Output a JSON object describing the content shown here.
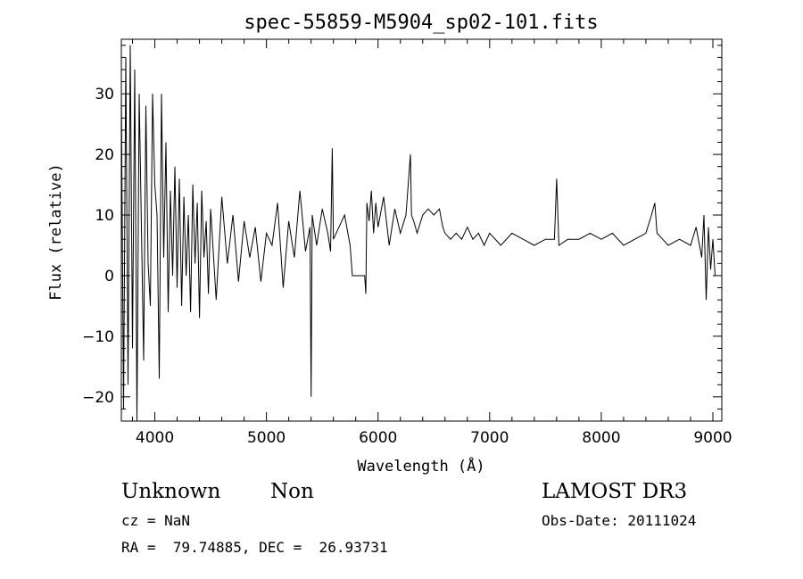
{
  "chart_data": {
    "type": "line",
    "title": "spec-55859-M5904_sp02-101.fits",
    "xlabel": "Wavelength (Å)",
    "ylabel": "Flux (relative)",
    "xlim": [
      3700,
      9080
    ],
    "ylim": [
      -24,
      39
    ],
    "xticks": [
      "4000",
      "5000",
      "6000",
      "7000",
      "8000",
      "9000"
    ],
    "yticks": [
      "-20",
      "-10",
      "0",
      "10",
      "20",
      "30"
    ],
    "series": [
      {
        "name": "flux",
        "x": [
          3700,
          3720,
          3740,
          3760,
          3780,
          3800,
          3820,
          3840,
          3860,
          3880,
          3900,
          3920,
          3940,
          3960,
          3980,
          4000,
          4020,
          4040,
          4060,
          4080,
          4100,
          4120,
          4140,
          4160,
          4180,
          4200,
          4220,
          4240,
          4260,
          4280,
          4300,
          4320,
          4340,
          4360,
          4380,
          4400,
          4420,
          4440,
          4460,
          4480,
          4500,
          4550,
          4600,
          4650,
          4700,
          4750,
          4800,
          4850,
          4900,
          4950,
          5000,
          5050,
          5100,
          5150,
          5200,
          5250,
          5300,
          5350,
          5390,
          5400,
          5410,
          5450,
          5500,
          5550,
          5575,
          5590,
          5600,
          5650,
          5700,
          5750,
          5770,
          5780,
          5800,
          5850,
          5880,
          5890,
          5900,
          5920,
          5940,
          5960,
          5980,
          6000,
          6050,
          6100,
          6150,
          6200,
          6250,
          6290,
          6300,
          6320,
          6350,
          6400,
          6450,
          6500,
          6550,
          6580,
          6600,
          6650,
          6700,
          6750,
          6800,
          6850,
          6900,
          6950,
          7000,
          7100,
          7200,
          7300,
          7400,
          7500,
          7580,
          7600,
          7620,
          7700,
          7800,
          7900,
          8000,
          8100,
          8200,
          8300,
          8400,
          8450,
          8480,
          8500,
          8550,
          8600,
          8700,
          8800,
          8850,
          8900,
          8920,
          8940,
          8960,
          8980,
          9000,
          9020
        ],
        "y": [
          30,
          -22,
          36,
          -18,
          38,
          -12,
          34,
          -24,
          30,
          8,
          -14,
          28,
          2,
          -5,
          30,
          15,
          10,
          -17,
          30,
          3,
          22,
          -6,
          14,
          0,
          18,
          -2,
          16,
          -5,
          13,
          0,
          10,
          -6,
          15,
          2,
          12,
          -7,
          14,
          3,
          9,
          -3,
          11,
          -4,
          13,
          2,
          10,
          -1,
          9,
          3,
          8,
          -1,
          7,
          5,
          12,
          -2,
          9,
          3,
          14,
          4,
          8,
          -20,
          10,
          5,
          11,
          7,
          4,
          21,
          6,
          8,
          10,
          5,
          0,
          0,
          0,
          0,
          0,
          -3,
          12,
          9,
          14,
          7,
          12,
          8,
          13,
          5,
          11,
          7,
          10,
          20,
          10,
          9,
          7,
          10,
          11,
          10,
          11,
          8,
          7,
          6,
          7,
          6,
          8,
          6,
          7,
          5,
          7,
          5,
          7,
          6,
          5,
          6,
          6,
          16,
          5,
          6,
          6,
          7,
          6,
          7,
          5,
          6,
          7,
          10,
          12,
          7,
          6,
          5,
          6,
          5,
          8,
          3,
          10,
          -4,
          8,
          1,
          6,
          0
        ]
      }
    ]
  },
  "info": {
    "object_class": "Unknown",
    "subclass": "Non",
    "survey": "LAMOST DR3",
    "cz": "cz = NaN",
    "obs_date": "Obs-Date: 20111024",
    "coords": "RA =  79.74885, DEC =  26.93731"
  }
}
